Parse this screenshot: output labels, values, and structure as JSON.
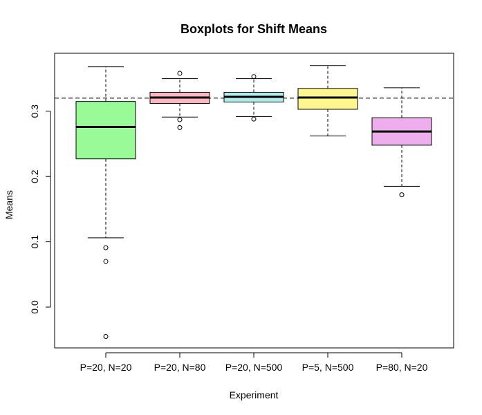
{
  "chart_data": {
    "type": "boxplot",
    "title": "Boxplots for Shift Means",
    "xlabel": "Experiment",
    "ylabel": "Means",
    "ylim": [
      -0.045,
      0.37
    ],
    "yticks": [
      "0.0",
      "0.1",
      "0.2",
      "0.3"
    ],
    "reference_line": 0.32,
    "grid": false,
    "boxes": [
      {
        "label": "P=20, N=20",
        "color": "#98fb98",
        "whisker_low": 0.106,
        "q1": 0.227,
        "median": 0.276,
        "q3": 0.315,
        "whisker_high": 0.368,
        "outliers": [
          0.091,
          0.07,
          -0.045
        ]
      },
      {
        "label": "P=20, N=80",
        "color": "#ffb6c1",
        "whisker_low": 0.291,
        "q1": 0.312,
        "median": 0.321,
        "q3": 0.329,
        "whisker_high": 0.35,
        "outliers": [
          0.358,
          0.287,
          0.275
        ]
      },
      {
        "label": "P=20, N=500",
        "color": "#b0eeee",
        "whisker_low": 0.292,
        "q1": 0.314,
        "median": 0.322,
        "q3": 0.329,
        "whisker_high": 0.35,
        "outliers": [
          0.353,
          0.288
        ]
      },
      {
        "label": "P=5, N=500",
        "color": "#fff68f",
        "whisker_low": 0.262,
        "q1": 0.303,
        "median": 0.321,
        "q3": 0.335,
        "whisker_high": 0.37,
        "outliers": []
      },
      {
        "label": "P=80, N=20",
        "color": "#eeaeee",
        "whisker_low": 0.185,
        "q1": 0.248,
        "median": 0.269,
        "q3": 0.29,
        "whisker_high": 0.336,
        "outliers": [
          0.172
        ]
      }
    ]
  }
}
